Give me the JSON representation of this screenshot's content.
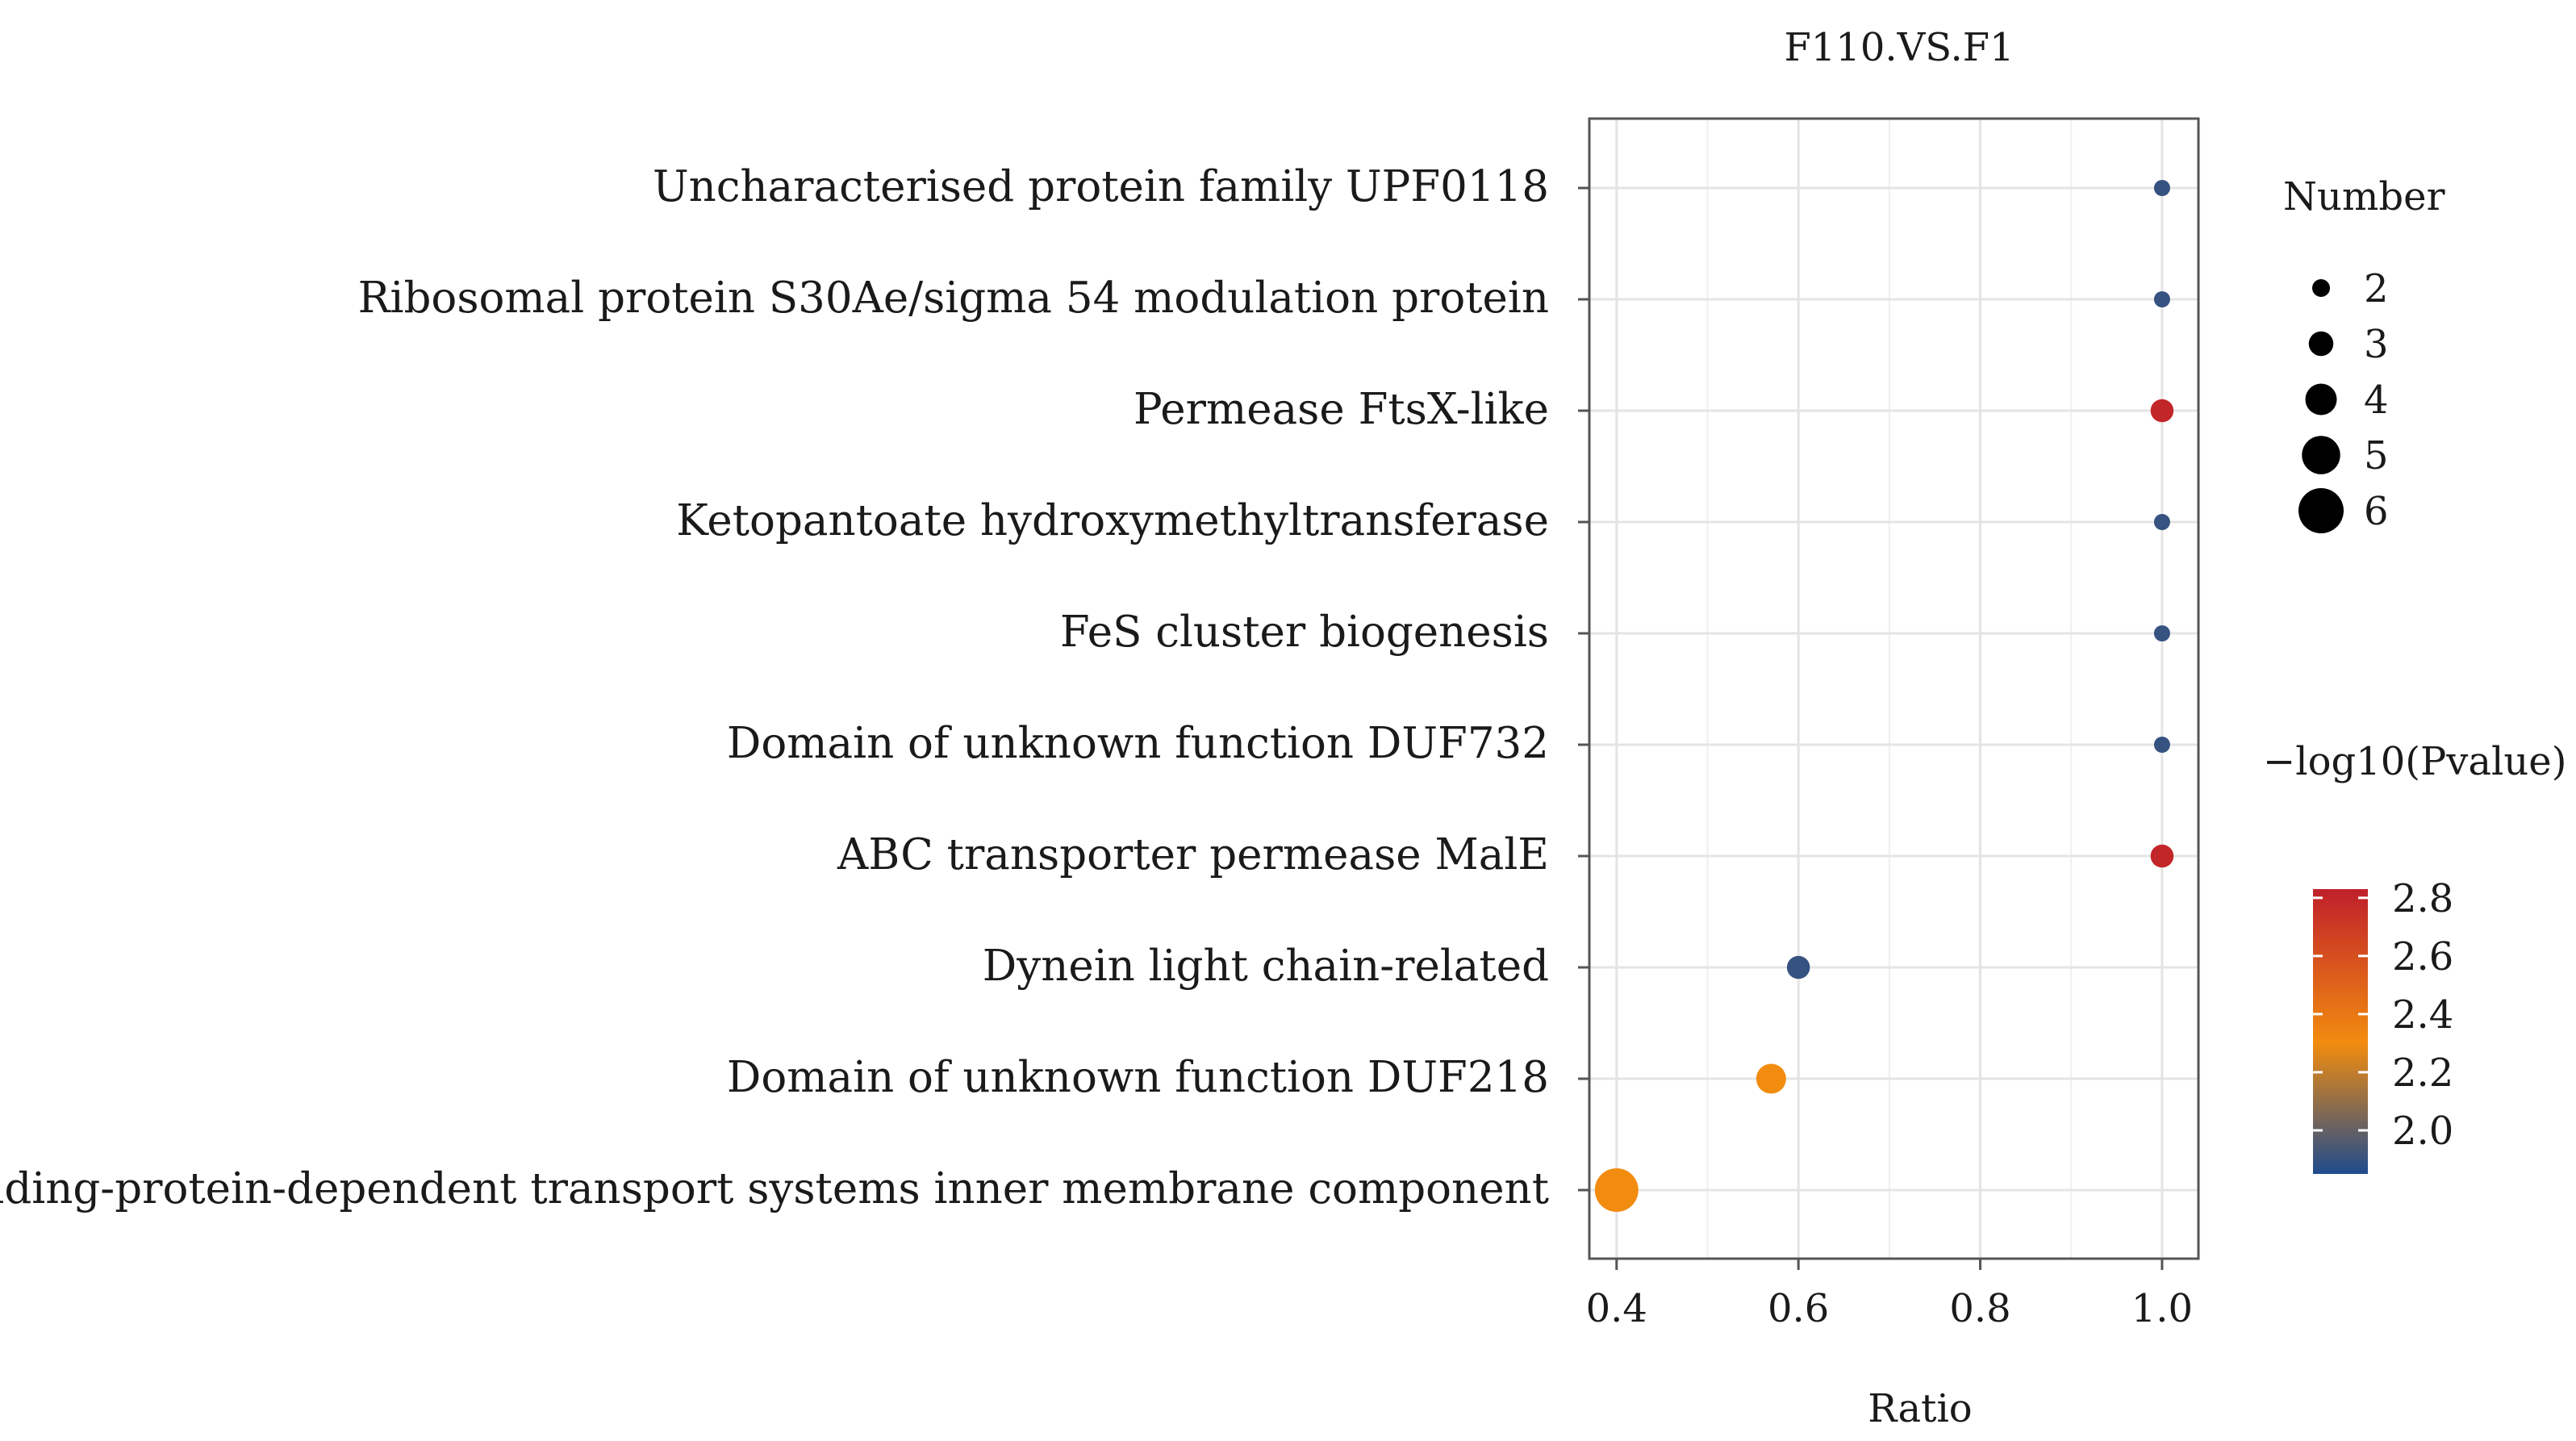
{
  "chart_data": {
    "type": "scatter",
    "title": "F110.VS.F1",
    "xlabel": "Ratio",
    "ylabel": "",
    "xlim": [
      0.37,
      1.04
    ],
    "xticks": [
      0.4,
      0.6,
      0.8,
      1.0
    ],
    "xtick_labels": [
      "0.4",
      "0.6",
      "0.8",
      "1.0"
    ],
    "grid": true,
    "categories": [
      "Uncharacterised protein family UPF0118",
      "Ribosomal protein S30Ae/sigma 54 modulation protein",
      "Permease FtsX-like",
      "Ketopantoate hydroxymethyltransferase",
      "FeS cluster biogenesis",
      "Domain of unknown function DUF732",
      "ABC transporter permease MalE",
      "Dynein light chain-related",
      "Domain of unknown function DUF218",
      "Binding-protein-dependent transport systems inner membrane component"
    ],
    "points": [
      {
        "category": "Uncharacterised protein family UPF0118",
        "ratio": 1.0,
        "number": 2,
        "neglog10p": 1.9
      },
      {
        "category": "Ribosomal protein S30Ae/sigma 54 modulation protein",
        "ratio": 1.0,
        "number": 2,
        "neglog10p": 1.9
      },
      {
        "category": "Permease FtsX-like",
        "ratio": 1.0,
        "number": 3,
        "neglog10p": 2.8
      },
      {
        "category": "Ketopantoate hydroxymethyltransferase",
        "ratio": 1.0,
        "number": 2,
        "neglog10p": 1.9
      },
      {
        "category": "FeS cluster biogenesis",
        "ratio": 1.0,
        "number": 2,
        "neglog10p": 1.9
      },
      {
        "category": "Domain of unknown function DUF732",
        "ratio": 1.0,
        "number": 2,
        "neglog10p": 1.9
      },
      {
        "category": "ABC transporter permease MalE",
        "ratio": 1.0,
        "number": 3,
        "neglog10p": 2.8
      },
      {
        "category": "Dynein light chain-related",
        "ratio": 0.6,
        "number": 3,
        "neglog10p": 1.9
      },
      {
        "category": "Domain of unknown function DUF218",
        "ratio": 0.57,
        "number": 4,
        "neglog10p": 2.3
      },
      {
        "category": "Binding-protein-dependent transport systems inner membrane component",
        "ratio": 0.4,
        "number": 6,
        "neglog10p": 2.3
      }
    ],
    "size_legend": {
      "title": "Number",
      "values": [
        2,
        3,
        4,
        5,
        6
      ],
      "labels": [
        "2",
        "3",
        "4",
        "5",
        "6"
      ]
    },
    "color_legend": {
      "title": "−log10(Pvalue)",
      "range": [
        1.85,
        2.83
      ],
      "ticks": [
        2.0,
        2.2,
        2.4,
        2.6,
        2.8
      ],
      "tick_labels": [
        "2.0",
        "2.2",
        "2.4",
        "2.6",
        "2.8"
      ],
      "colors": [
        "#1f4b8e",
        "#f28c0f",
        "#c0202a"
      ]
    },
    "legend_position": "right"
  }
}
